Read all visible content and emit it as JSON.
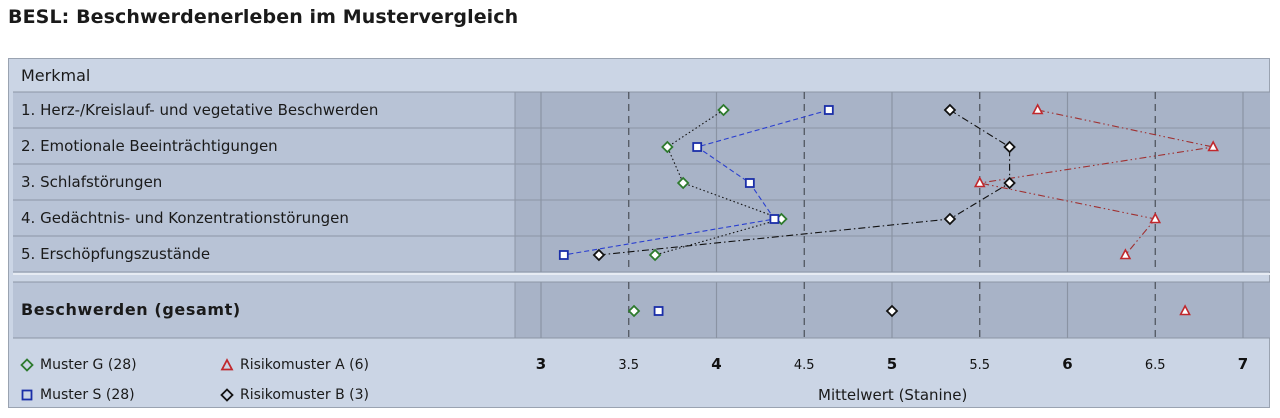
{
  "title": "BESL: Beschwerdenerleben im Mustervergleich",
  "table": {
    "header": "Merkmal"
  },
  "chart_data": {
    "type": "scatter",
    "xlabel": "Mittelwert (Stanine)",
    "xlim": [
      3,
      7
    ],
    "xticks": [
      "3",
      "3.5",
      "4",
      "4.5",
      "5",
      "5.5",
      "6",
      "6.5",
      "7"
    ],
    "xtick_values": [
      3,
      3.5,
      4,
      4.5,
      5,
      5.5,
      6,
      6.5,
      7
    ],
    "dashed_gridlines_at": [
      3.5,
      4.5,
      5.5,
      6.5
    ],
    "categories": [
      "1. Herz-/Kreislauf- und vegetative Beschwerden",
      "2. Emotionale Beeinträchtigungen",
      "3. Schlafstörungen",
      "4. Gedächtnis- und Konzentrationstörungen",
      "5. Erschöpfungszustände"
    ],
    "summary_category": "Beschwerden (gesamt)",
    "legend_placement": "bottom-left",
    "series": [
      {
        "name": "Muster G (28)",
        "marker": "diamond",
        "color": "#2d7a2d",
        "line": "dotted",
        "line_color": "#111111",
        "values": [
          4.04,
          3.72,
          3.81,
          4.37,
          3.65
        ],
        "summary": 3.53
      },
      {
        "name": "Muster S (28)",
        "marker": "square",
        "color": "#1a2ea8",
        "line": "dashed",
        "line_color": "#2a3fd0",
        "values": [
          4.64,
          3.89,
          4.19,
          4.33,
          3.13
        ],
        "summary": 3.67
      },
      {
        "name": "Risikomuster A (6)",
        "marker": "triangle",
        "color": "#c0282d",
        "line": "dashdotdot",
        "line_color": "#a03030",
        "values": [
          5.83,
          6.83,
          5.5,
          6.5,
          6.33
        ],
        "summary": 6.67
      },
      {
        "name": "Risikomuster B (3)",
        "marker": "diamond",
        "color": "#111111",
        "line": "dashdot",
        "line_color": "#111111",
        "values": [
          5.33,
          5.67,
          5.67,
          5.33,
          3.33
        ],
        "summary": 5.0
      }
    ]
  }
}
